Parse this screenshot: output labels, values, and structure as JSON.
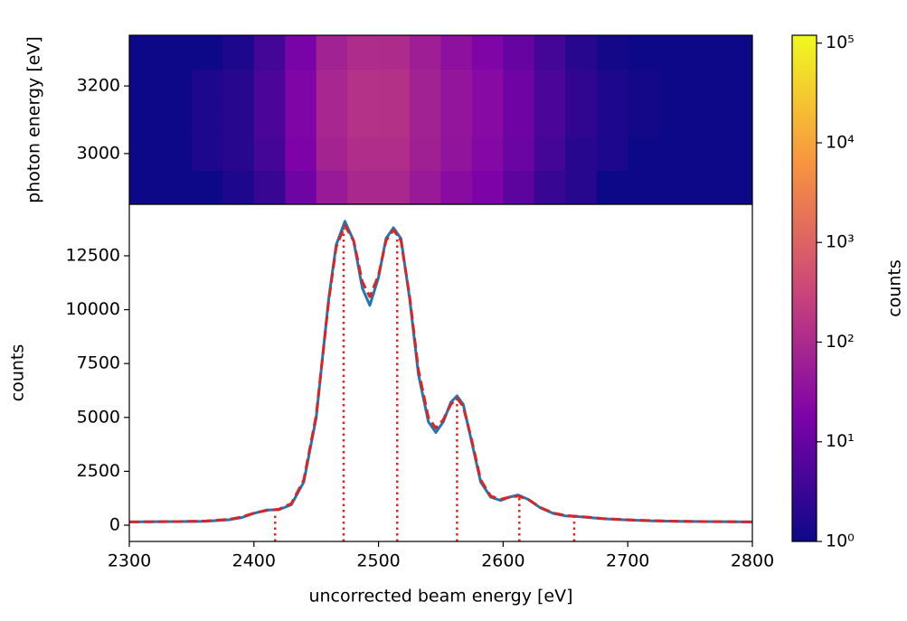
{
  "chart_data": [
    {
      "type": "heatmap",
      "ylabel": "photon energy [eV]",
      "xlim": [
        2300,
        2800
      ],
      "ylim": [
        2850,
        3350
      ],
      "yticks": [
        3000,
        3200
      ],
      "x_edges": [
        2300,
        2325,
        2350,
        2375,
        2400,
        2425,
        2450,
        2475,
        2500,
        2525,
        2550,
        2575,
        2600,
        2625,
        2650,
        2675,
        2700,
        2725,
        2750,
        2775,
        2800
      ],
      "y_edges": [
        2850,
        2950,
        3050,
        3150,
        3250,
        3350
      ],
      "z": [
        [
          1,
          1,
          1,
          1.5,
          3,
          12,
          50,
          90,
          90,
          50,
          28,
          18,
          8,
          3,
          2,
          1,
          1,
          1,
          1,
          1
        ],
        [
          1,
          1,
          1.5,
          2,
          4,
          18,
          75,
          120,
          120,
          65,
          38,
          23,
          11,
          4,
          2,
          1.5,
          1,
          1,
          1,
          1
        ],
        [
          1,
          1,
          1.5,
          2,
          5,
          20,
          85,
          140,
          135,
          70,
          40,
          25,
          12,
          5,
          2.5,
          1.5,
          1.2,
          1,
          1,
          1
        ],
        [
          1,
          1,
          1.5,
          2,
          5,
          20,
          85,
          140,
          135,
          70,
          40,
          25,
          12,
          5,
          2.5,
          1.5,
          1.2,
          1,
          1,
          1
        ],
        [
          1,
          1,
          1,
          1.5,
          4,
          16,
          70,
          115,
          110,
          60,
          33,
          20,
          10,
          4,
          2,
          1.2,
          1,
          1,
          1,
          1
        ]
      ],
      "colorbar": {
        "label": "counts",
        "scale": "log",
        "colormap": "plasma",
        "lim": [
          1,
          120000
        ],
        "ticks": [
          {
            "value": 1,
            "label": "10⁰"
          },
          {
            "value": 10,
            "label": "10¹"
          },
          {
            "value": 100,
            "label": "10²"
          },
          {
            "value": 1000,
            "label": "10³"
          },
          {
            "value": 10000,
            "label": "10⁴"
          },
          {
            "value": 100000,
            "label": "10⁵"
          }
        ]
      }
    },
    {
      "type": "line",
      "xlabel": "uncorrected beam energy [eV]",
      "ylabel": "counts",
      "xlim": [
        2300,
        2800
      ],
      "xticks": [
        2300,
        2400,
        2500,
        2600,
        2700,
        2800
      ],
      "ylim": [
        -755,
        14890
      ],
      "yticks": [
        0,
        2500,
        5000,
        7500,
        10000,
        12500
      ],
      "x": [
        2300,
        2320,
        2340,
        2360,
        2380,
        2390,
        2400,
        2410,
        2420,
        2430,
        2440,
        2450,
        2460,
        2466,
        2473,
        2480,
        2487,
        2493,
        2500,
        2506,
        2512,
        2518,
        2525,
        2532,
        2540,
        2546,
        2552,
        2558,
        2563,
        2568,
        2575,
        2582,
        2590,
        2598,
        2605,
        2612,
        2620,
        2630,
        2640,
        2650,
        2660,
        2670,
        2680,
        2700,
        2720,
        2740,
        2760,
        2780,
        2800
      ],
      "series": [
        {
          "color": "#1f77b4",
          "linestyle": "solid",
          "values": [
            150,
            160,
            170,
            180,
            250,
            350,
            550,
            700,
            720,
            950,
            2000,
            5000,
            10500,
            13000,
            14100,
            13200,
            11000,
            10200,
            11500,
            13300,
            13800,
            13300,
            10500,
            7000,
            4800,
            4300,
            4800,
            5700,
            6000,
            5600,
            3800,
            2000,
            1300,
            1150,
            1300,
            1400,
            1200,
            800,
            550,
            430,
            400,
            350,
            300,
            240,
            200,
            180,
            170,
            160,
            150
          ]
        },
        {
          "color": "#d62728",
          "linestyle": "dashed",
          "values": [
            150,
            160,
            170,
            190,
            270,
            380,
            560,
            680,
            740,
            1000,
            2100,
            5100,
            10400,
            12900,
            13900,
            13200,
            11300,
            10600,
            11600,
            13200,
            13700,
            13200,
            10600,
            7200,
            5000,
            4500,
            4900,
            5600,
            5900,
            5500,
            3900,
            2100,
            1350,
            1200,
            1300,
            1350,
            1200,
            820,
            570,
            450,
            410,
            360,
            310,
            250,
            210,
            185,
            170,
            160,
            150
          ]
        }
      ],
      "peaks": {
        "color": "#d62728",
        "x": [
          2417,
          2472,
          2515,
          2563,
          2613,
          2657
        ],
        "heights": [
          600,
          14000,
          13700,
          5900,
          1300,
          400
        ]
      }
    }
  ]
}
